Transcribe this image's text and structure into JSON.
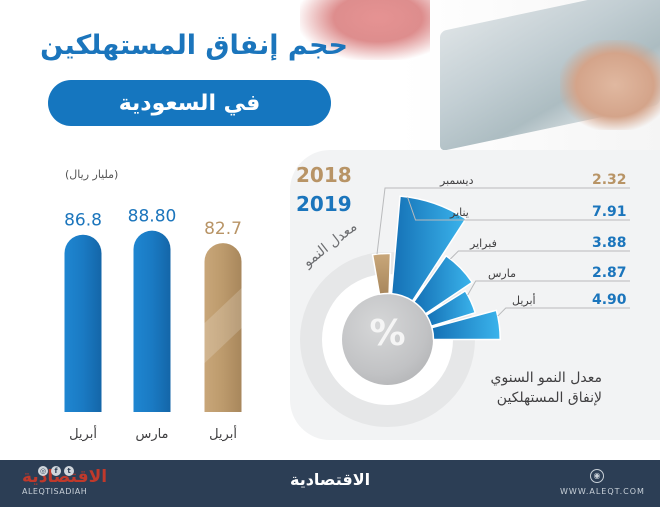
{
  "header": {
    "title_line1": "حجم إنفاق المستهلكين",
    "title_line2": "في السعودية"
  },
  "colors": {
    "blue": "#1b75bc",
    "gold": "#b89466",
    "footer_bg": "#2c3e55"
  },
  "bar_panel": {
    "unit": "(مليار ريال)"
  },
  "right_panel": {
    "legend_2018": "2018",
    "legend_2019": "2019",
    "center_symbol": "%",
    "growth_label": "معدل النمو",
    "caption_line1": "معدل النمو السنوي",
    "caption_line2": "لإنفاق المستهلكين"
  },
  "footer": {
    "logo": "الاقتصادية",
    "handle": "ALEQTISADIAH",
    "center_logo": "الاقتصادية",
    "url": "WWW.ALEQT.COM",
    "social_icons": [
      "instagram-icon",
      "facebook-icon",
      "twitter-icon"
    ]
  },
  "chart_data": [
    {
      "type": "bar",
      "categories": [
        "أبريل",
        "مارس",
        "أبريل"
      ],
      "values": [
        86.8,
        88.8,
        82.7
      ],
      "value_labels": [
        "86.8",
        "88.80",
        "82.7"
      ],
      "series_colors": [
        "#1b75bc",
        "#1b75bc",
        "#b89466"
      ],
      "year_of_bar": [
        "2019",
        "2019",
        "2018"
      ],
      "ylabel": "(مليار ريال)",
      "ylim": [
        0,
        100
      ]
    },
    {
      "type": "pie",
      "categories": [
        "ديسمبر",
        "يناير",
        "فبراير",
        "مارس",
        "أبريل"
      ],
      "values": [
        2.32,
        7.91,
        3.88,
        2.87,
        4.9
      ],
      "value_labels": [
        "2.32",
        "7.91",
        "3.88",
        "2.87",
        "4.90"
      ],
      "series_colors": [
        "#b89466",
        "#1b75bc",
        "#1b75bc",
        "#1b75bc",
        "#1b75bc"
      ],
      "year_of_value": [
        "2018",
        "2019",
        "2019",
        "2019",
        "2019"
      ]
    }
  ]
}
